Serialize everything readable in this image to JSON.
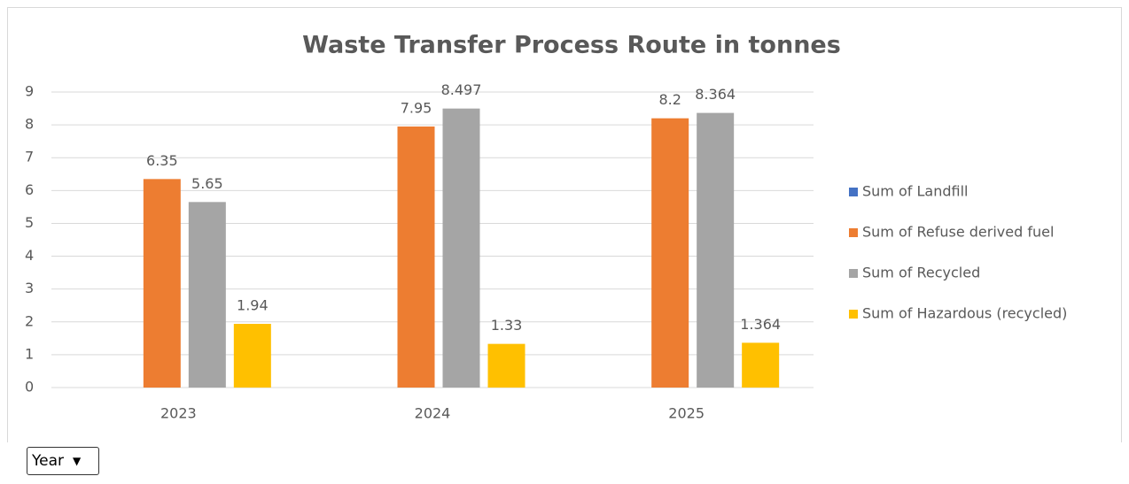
{
  "chart_data": {
    "type": "bar",
    "title": "Waste Transfer Process Route in tonnes",
    "categories": [
      "2023",
      "2024",
      "2025"
    ],
    "series": [
      {
        "name": "Sum of Landfill",
        "color": "#4472c4",
        "values": [
          null,
          null,
          null
        ]
      },
      {
        "name": "Sum of Refuse derived fuel",
        "color": "#ed7d31",
        "values": [
          6.35,
          7.95,
          8.2
        ]
      },
      {
        "name": "Sum of Recycled",
        "color": "#a5a5a5",
        "values": [
          5.65,
          8.497,
          8.364
        ]
      },
      {
        "name": "Sum of Hazardous (recycled)",
        "color": "#ffc000",
        "values": [
          1.94,
          1.33,
          1.364
        ]
      }
    ],
    "ylim": [
      0,
      9
    ],
    "yticks": [
      0,
      1,
      2,
      3,
      4,
      5,
      6,
      7,
      8,
      9
    ],
    "grid": true,
    "legend": "right"
  },
  "field_button": {
    "label": "Year"
  }
}
